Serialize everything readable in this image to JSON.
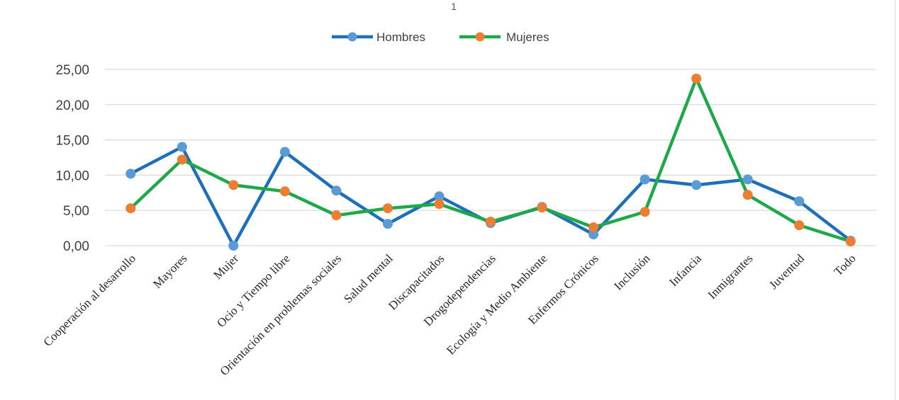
{
  "chart_data": {
    "type": "line",
    "title": "1",
    "xlabel": "",
    "ylabel": "",
    "ylim": [
      0,
      25
    ],
    "yticks": [
      "0,00",
      "5,00",
      "10,00",
      "15,00",
      "20,00",
      "25,00"
    ],
    "grid": true,
    "legend_position": "top",
    "categories": [
      "Cooperación al desarrollo",
      "Mayores",
      "Mujer",
      "Ocio y Tiempo libre",
      "Orientación en problemas sociales",
      "Salud mental",
      "Discapacitados",
      "Drogodependencias",
      "Ecología y Medio Ambiente",
      "Enfermos Crónicos",
      "Inclusión",
      "Infancia",
      "Inmigrantes",
      "Juventud",
      "Todo"
    ],
    "series": [
      {
        "name": "Hombres",
        "line_color": "#1f6fb8",
        "marker_color": "#5b9bd5",
        "values": [
          10.2,
          14.0,
          0.0,
          13.3,
          7.8,
          3.1,
          7.0,
          3.2,
          5.5,
          1.6,
          9.4,
          8.6,
          9.4,
          6.3,
          0.7
        ]
      },
      {
        "name": "Mujeres",
        "line_color": "#1fa84a",
        "marker_color": "#ed7d31",
        "values": [
          5.3,
          12.2,
          8.6,
          7.7,
          4.3,
          5.3,
          5.9,
          3.4,
          5.4,
          2.6,
          4.8,
          23.7,
          7.2,
          2.9,
          0.6
        ]
      }
    ]
  }
}
